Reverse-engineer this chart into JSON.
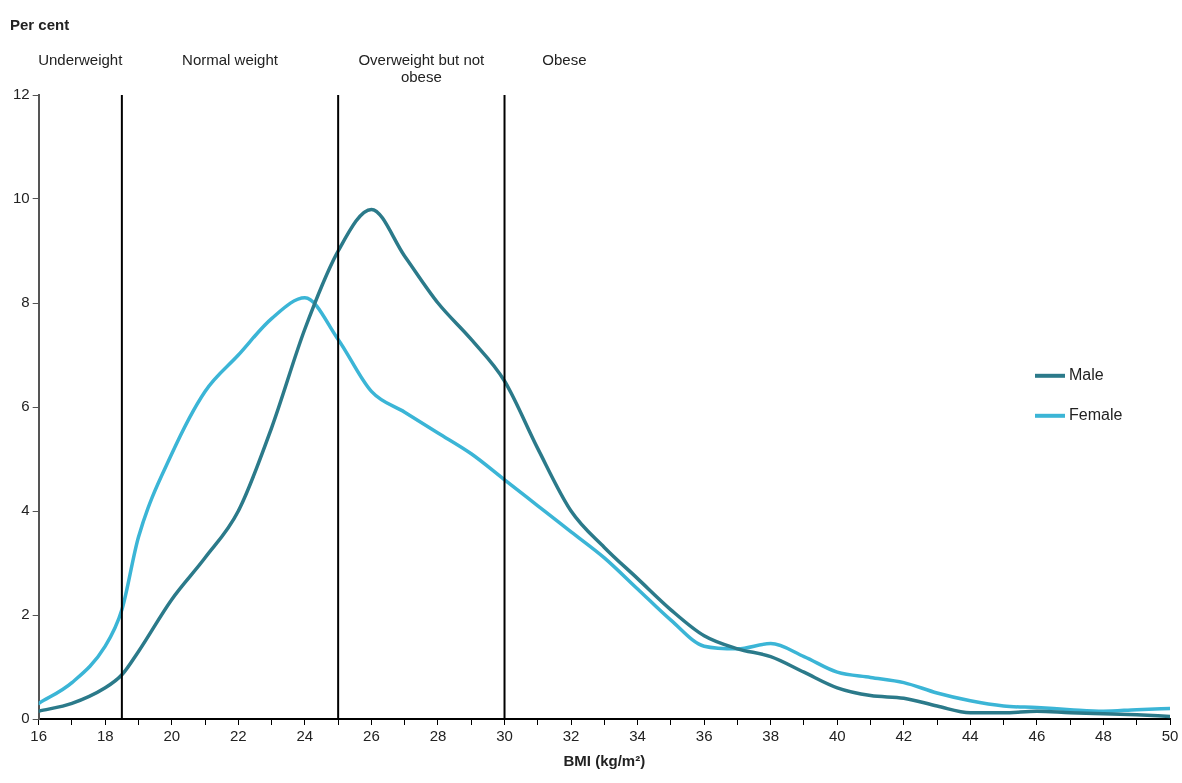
{
  "chart_data": {
    "type": "line",
    "ylabel": "Per cent",
    "xlabel": "BMI (kg/m²)",
    "xlim": [
      16,
      50
    ],
    "xticks": [
      16,
      {
        "value": 17,
        "label": null
      },
      18,
      {
        "value": 19,
        "label": null
      },
      20,
      {
        "value": 21,
        "label": null
      },
      22,
      {
        "value": 23,
        "label": null
      },
      24,
      {
        "value": 25,
        "label": null
      },
      26,
      {
        "value": 27,
        "label": null
      },
      28,
      {
        "value": 29,
        "label": null
      },
      30,
      {
        "value": 31,
        "label": null
      },
      32,
      {
        "value": 33,
        "label": null
      },
      34,
      {
        "value": 35,
        "label": null
      },
      36,
      {
        "value": 37,
        "label": null
      },
      38,
      {
        "value": 39,
        "label": null
      },
      40,
      {
        "value": 41,
        "label": null
      },
      42,
      {
        "value": 43,
        "label": null
      },
      44,
      {
        "value": 45,
        "label": null
      },
      46,
      {
        "value": 47,
        "label": null
      },
      48,
      {
        "value": 49,
        "label": null
      },
      50
    ],
    "ylim": [
      0,
      12
    ],
    "yticks": [
      0,
      2,
      4,
      6,
      8,
      10,
      12
    ],
    "x": [
      16,
      17,
      18,
      18.5,
      19,
      20,
      21,
      22,
      23,
      24,
      25,
      26,
      27,
      28,
      29,
      30,
      31,
      32,
      33,
      34,
      35,
      36,
      37,
      38,
      39,
      40,
      41,
      42,
      43,
      44,
      45,
      46,
      47,
      48,
      49,
      50
    ],
    "series": [
      {
        "name": "Male",
        "color": "#2b7a8a",
        "values": [
          0.15,
          0.3,
          0.6,
          0.85,
          1.3,
          2.3,
          3.1,
          4.0,
          5.6,
          7.5,
          9.0,
          9.8,
          8.9,
          8.0,
          7.3,
          6.5,
          5.2,
          4.0,
          3.3,
          2.7,
          2.1,
          1.6,
          1.35,
          1.2,
          0.9,
          0.6,
          0.45,
          0.4,
          0.25,
          0.12,
          0.12,
          0.15,
          0.12,
          0.1,
          0.08,
          0.05
        ]
      },
      {
        "name": "Female",
        "color": "#3bb5d6",
        "values": [
          0.3,
          0.7,
          1.4,
          2.1,
          3.5,
          5.1,
          6.3,
          7.0,
          7.7,
          8.1,
          7.3,
          6.3,
          5.9,
          5.5,
          5.1,
          4.6,
          4.1,
          3.6,
          3.1,
          2.5,
          1.9,
          1.4,
          1.35,
          1.45,
          1.2,
          0.9,
          0.8,
          0.7,
          0.5,
          0.35,
          0.25,
          0.22,
          0.18,
          0.15,
          0.18,
          0.2
        ]
      }
    ],
    "ref_lines": [
      {
        "axis": "x",
        "value": 18.5,
        "color": "#000000"
      },
      {
        "axis": "x",
        "value": 25,
        "color": "#000000"
      },
      {
        "axis": "x",
        "value": 30,
        "color": "#000000"
      }
    ],
    "annotations": [
      "Underweight",
      "Normal weight",
      "Overweight but not obese",
      "Obese"
    ],
    "legend": "right",
    "marker": "none",
    "line_style": "solid",
    "grid": false
  }
}
